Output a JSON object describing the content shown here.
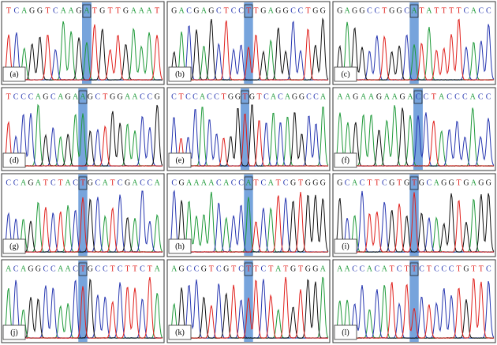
{
  "panels": [
    {
      "label": "(a)",
      "bases": [
        "T",
        "C",
        "A",
        "G",
        "G",
        "T",
        "C",
        "A",
        "A",
        "G",
        "A",
        "T",
        "G",
        "T",
        "T",
        "G",
        "A",
        "A",
        "A",
        "T"
      ],
      "highlight": 10
    },
    {
      "label": "(b)",
      "bases": [
        "G",
        "A",
        "C",
        "G",
        "A",
        "G",
        "C",
        "T",
        "C",
        "C",
        "T",
        "T",
        "G",
        "A",
        "G",
        "G",
        "C",
        "C",
        "T",
        "G",
        "G"
      ],
      "highlight": 10
    },
    {
      "label": "(c)",
      "bases": [
        "G",
        "A",
        "G",
        "G",
        "C",
        "C",
        "T",
        "G",
        "G",
        "C",
        "A",
        "T",
        "A",
        "T",
        "T",
        "T",
        "T",
        "C",
        "A",
        "C",
        "C"
      ],
      "highlight": 10
    },
    {
      "label": "(d)",
      "bases": [
        "T",
        "C",
        "C",
        "C",
        "A",
        "G",
        "C",
        "A",
        "G",
        "A",
        "A",
        "G",
        "C",
        "T",
        "G",
        "G",
        "A",
        "A",
        "C",
        "C",
        "G"
      ],
      "highlight": 10
    },
    {
      "label": "(e)",
      "bases": [
        "C",
        "T",
        "C",
        "C",
        "A",
        "C",
        "C",
        "T",
        "G",
        "G",
        "T",
        "G",
        "T",
        "C",
        "A",
        "C",
        "A",
        "G",
        "G",
        "C",
        "C",
        "A"
      ],
      "highlight": 10
    },
    {
      "label": "(f)",
      "bases": [
        "A",
        "A",
        "G",
        "A",
        "A",
        "G",
        "A",
        "A",
        "G",
        "A",
        "C",
        "C",
        "T",
        "A",
        "C",
        "C",
        "C",
        "A",
        "C",
        "C"
      ],
      "highlight": 10
    },
    {
      "label": "(g)",
      "bases": [
        "C",
        "C",
        "A",
        "G",
        "A",
        "T",
        "C",
        "T",
        "A",
        "C",
        "T",
        "G",
        "C",
        "A",
        "T",
        "C",
        "G",
        "A",
        "C",
        "C",
        "A"
      ],
      "highlight": 10
    },
    {
      "label": "(h)",
      "bases": [
        "C",
        "G",
        "A",
        "A",
        "A",
        "A",
        "C",
        "A",
        "C",
        "C",
        "A",
        "T",
        "C",
        "A",
        "T",
        "C",
        "G",
        "T",
        "G",
        "G",
        "G"
      ],
      "highlight": 10
    },
    {
      "label": "(i)",
      "bases": [
        "G",
        "C",
        "A",
        "C",
        "T",
        "T",
        "C",
        "G",
        "T",
        "G",
        "T",
        "G",
        "C",
        "A",
        "G",
        "G",
        "T",
        "G",
        "A",
        "G",
        "G"
      ],
      "highlight": 10
    },
    {
      "label": "(j)",
      "bases": [
        "A",
        "C",
        "A",
        "G",
        "G",
        "C",
        "C",
        "A",
        "A",
        "C",
        "T",
        "G",
        "C",
        "C",
        "T",
        "C",
        "T",
        "T",
        "C",
        "T",
        "A"
      ],
      "highlight": 10
    },
    {
      "label": "(k)",
      "bases": [
        "A",
        "G",
        "C",
        "C",
        "G",
        "T",
        "C",
        "G",
        "T",
        "C",
        "T",
        "T",
        "C",
        "T",
        "A",
        "T",
        "G",
        "T",
        "G",
        "G",
        "A"
      ],
      "highlight": 10
    },
    {
      "label": "(l)",
      "bases": [
        "A",
        "A",
        "C",
        "C",
        "A",
        "C",
        "A",
        "T",
        "C",
        "T",
        "T",
        "C",
        "T",
        "C",
        "C",
        "C",
        "T",
        "G",
        "T",
        "T",
        "C"
      ],
      "highlight": 10
    }
  ]
}
